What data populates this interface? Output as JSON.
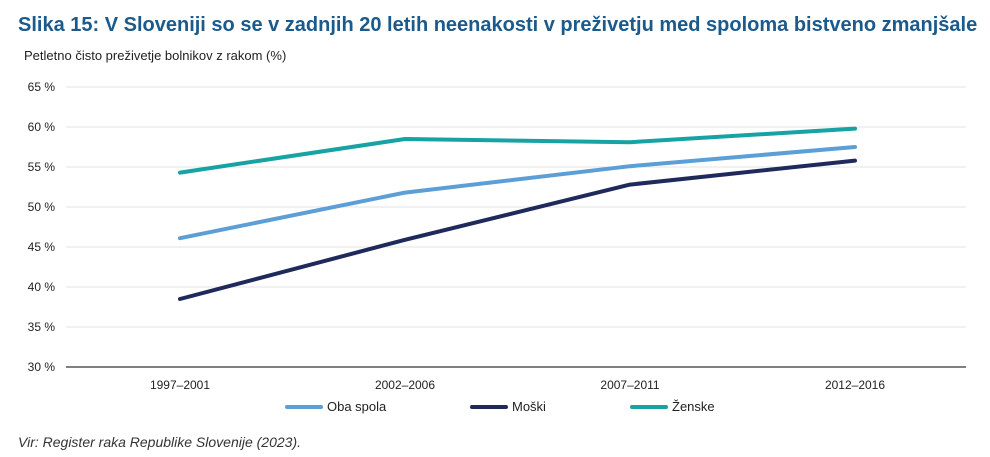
{
  "title": "Slika 15: V Sloveniji so se v zadnjih 20 letih neenakosti v preživetju med spoloma bistveno zmanjšale",
  "subtitle": "Petletno čisto preživetje bolnikov z rakom (%)",
  "source": "Vir: Register raka Republike Slovenije (2023).",
  "chart_data": {
    "type": "line",
    "categories": [
      "1997–2001",
      "2002–2006",
      "2007–2011",
      "2012–2016"
    ],
    "ylim": [
      30,
      65
    ],
    "yticks": [
      30,
      35,
      40,
      45,
      50,
      55,
      60,
      65
    ],
    "ytick_labels": [
      "30 %",
      "35 %",
      "40 %",
      "45 %",
      "50 %",
      "55 %",
      "60 %",
      "65 %"
    ],
    "grid": true,
    "legend_position": "bottom",
    "series": [
      {
        "name": "Oba spola",
        "color": "#5b9fd6",
        "values": [
          46.1,
          51.8,
          55.1,
          57.5
        ]
      },
      {
        "name": "Moški",
        "color": "#1f2a5c",
        "values": [
          38.5,
          45.9,
          52.8,
          55.8
        ]
      },
      {
        "name": "Ženske",
        "color": "#17a2a4",
        "values": [
          54.3,
          58.5,
          58.1,
          59.8
        ]
      }
    ]
  }
}
